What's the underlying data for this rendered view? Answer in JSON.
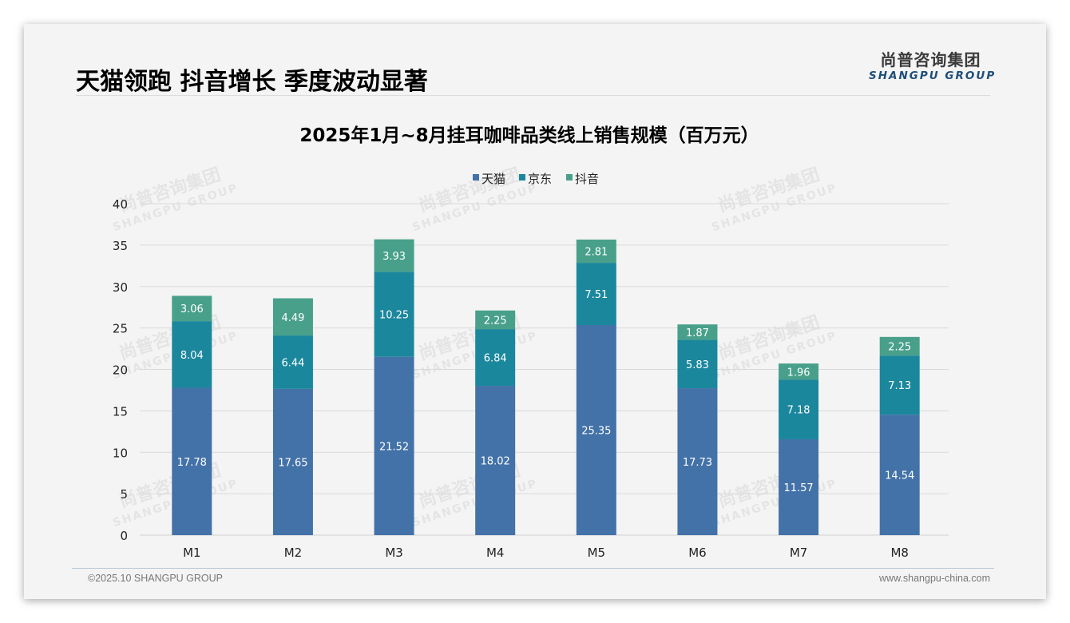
{
  "header": {
    "title": "天猫领跑 抖音增长 季度波动显著",
    "logo_cn": "尚普咨询集团",
    "logo_en": "SHANGPU GROUP"
  },
  "footer": {
    "copyright": "©2025.10 SHANGPU GROUP",
    "website": "www.shangpu-china.com"
  },
  "watermark": {
    "cn": "尚普咨询集团",
    "en": "SHANGPU GROUP"
  },
  "colors": {
    "tmall": "#4372a8",
    "jd": "#1b879d",
    "douyin": "#48a08a"
  },
  "chart_data": {
    "type": "bar",
    "stacked": true,
    "title": "2025年1月~8月挂耳咖啡品类线上销售规模（百万元）",
    "xlabel": "",
    "ylabel": "",
    "categories": [
      "M1",
      "M2",
      "M3",
      "M4",
      "M5",
      "M6",
      "M7",
      "M8"
    ],
    "ylim": [
      0,
      40
    ],
    "yticks": [
      0,
      5,
      10,
      15,
      20,
      25,
      30,
      35,
      40
    ],
    "grid": true,
    "legend_position": "top-center",
    "series": [
      {
        "name": "天猫",
        "color": "#4372a8",
        "values": [
          17.78,
          17.65,
          21.52,
          18.02,
          25.35,
          17.73,
          11.57,
          14.54
        ]
      },
      {
        "name": "京东",
        "color": "#1b879d",
        "values": [
          8.04,
          6.44,
          10.25,
          6.84,
          7.51,
          5.83,
          7.18,
          7.13
        ]
      },
      {
        "name": "抖音",
        "color": "#48a08a",
        "values": [
          3.06,
          4.49,
          3.93,
          2.25,
          2.81,
          1.87,
          1.96,
          2.25
        ]
      }
    ]
  }
}
